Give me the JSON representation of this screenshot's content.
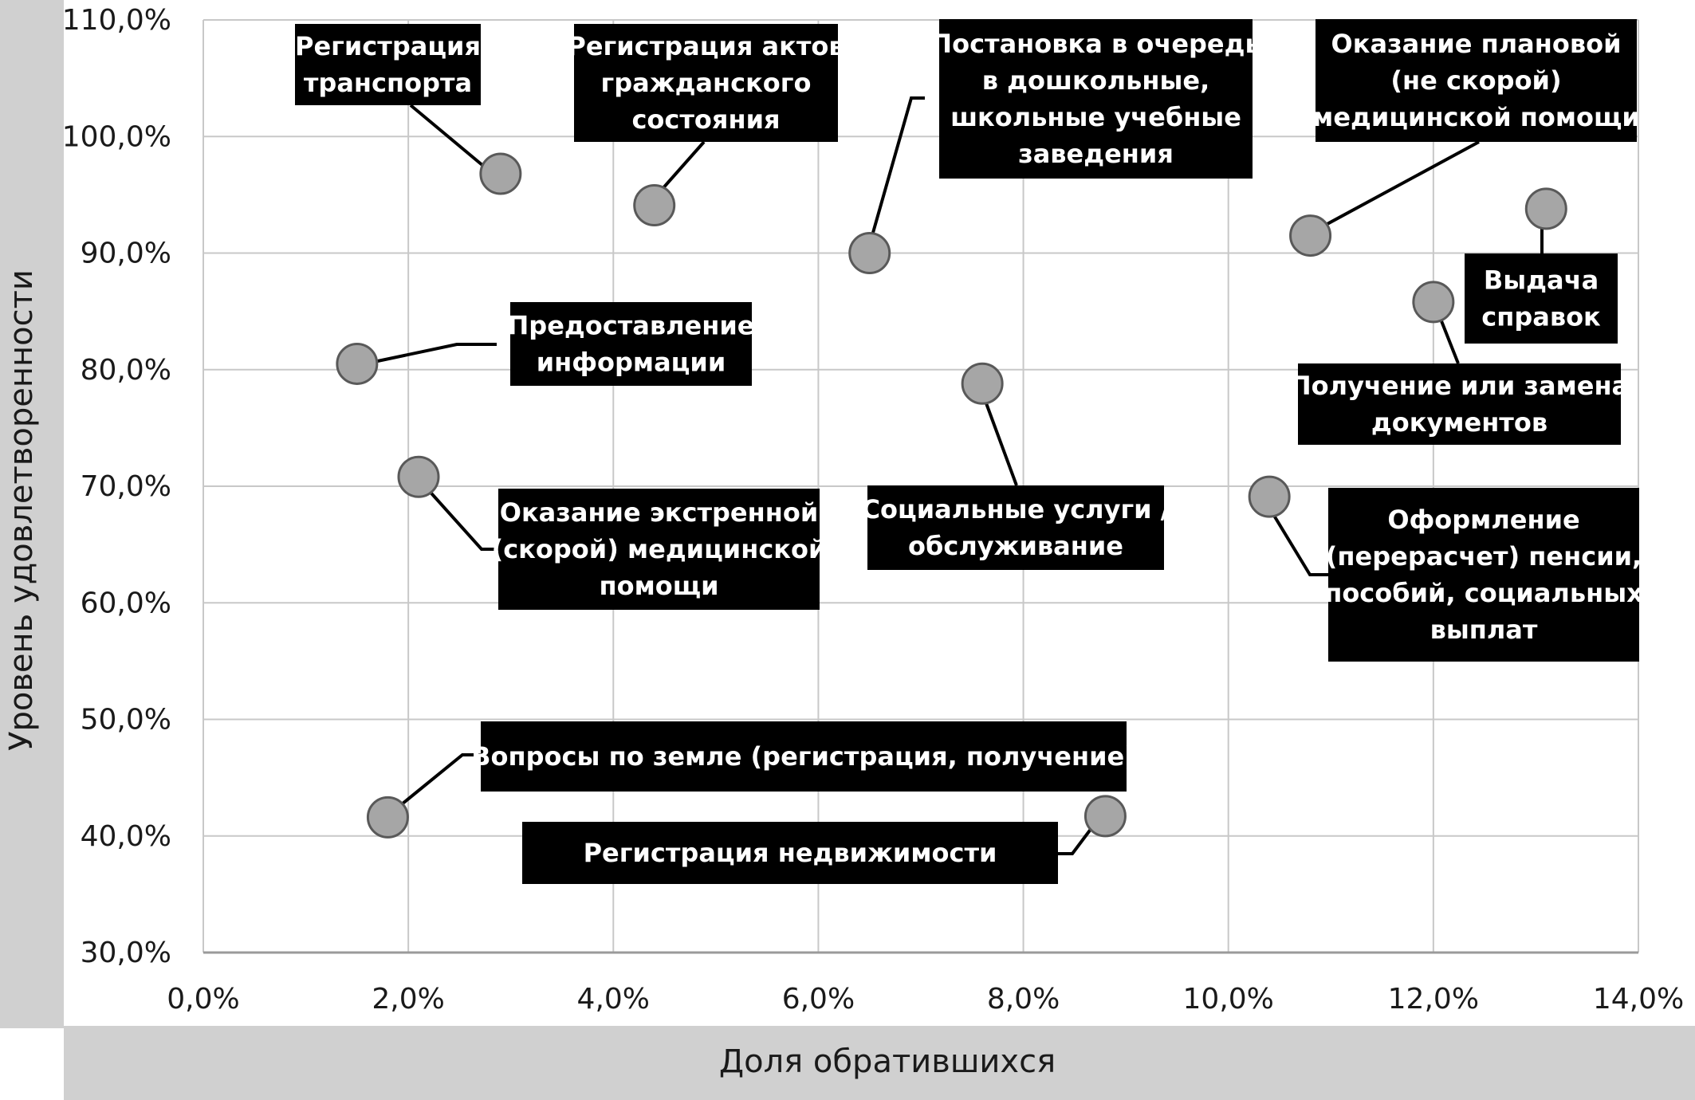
{
  "chart_data": {
    "type": "scatter",
    "xlabel": "Доля обратившихся",
    "ylabel": "Уровень удовлетворенности",
    "xlim": [
      0,
      14
    ],
    "ylim": [
      30,
      110
    ],
    "x_ticks": [
      "0,0%",
      "2,0%",
      "4,0%",
      "6,0%",
      "8,0%",
      "10,0%",
      "12,0%",
      "14,0%"
    ],
    "y_ticks": [
      "30,0%",
      "40,0%",
      "50,0%",
      "60,0%",
      "70,0%",
      "80,0%",
      "90,0%",
      "100,0%",
      "110,0%"
    ],
    "grid": true,
    "colors": {
      "marker_fill": "#a6a6a6",
      "marker_stroke": "#595959",
      "label_bg": "#000000",
      "label_text": "#ffffff",
      "axis_band": "#d0d0d0",
      "grid": "#c8c8c8"
    },
    "points": [
      {
        "x": 2.9,
        "y": 96.8,
        "label": [
          "Регистрация",
          "транспорта"
        ]
      },
      {
        "x": 4.4,
        "y": 94.1,
        "label": [
          "Регистрация актов",
          "гражданского",
          "состояния"
        ]
      },
      {
        "x": 6.5,
        "y": 90.0,
        "label": [
          "Постановка в очередь",
          "в дошкольные,",
          "школьные учебные",
          "заведения"
        ]
      },
      {
        "x": 10.8,
        "y": 91.5,
        "label": [
          "Оказание плановой",
          "(не скорой)",
          "медицинской помощи"
        ]
      },
      {
        "x": 13.1,
        "y": 93.8,
        "label": [
          "Выдача",
          "справок"
        ]
      },
      {
        "x": 12.0,
        "y": 85.8,
        "label": [
          "Получение или замена",
          "документов"
        ]
      },
      {
        "x": 1.5,
        "y": 80.5,
        "label": [
          "Предоставление",
          "информации"
        ]
      },
      {
        "x": 7.6,
        "y": 78.8,
        "label": [
          "Социальные услуги /",
          "обслуживание"
        ]
      },
      {
        "x": 2.1,
        "y": 70.8,
        "label": [
          "Оказание экстренной",
          "(скорой) медицинской",
          "помощи"
        ]
      },
      {
        "x": 10.4,
        "y": 69.1,
        "label": [
          "Оформление",
          "(перерасчет) пенсии,",
          "пособий, социальных",
          "выплат"
        ]
      },
      {
        "x": 1.8,
        "y": 41.6,
        "label": [
          "Вопросы по земле (регистрация, получение)"
        ]
      },
      {
        "x": 8.8,
        "y": 41.7,
        "label": [
          "Регистрация недвижимости"
        ]
      }
    ]
  }
}
